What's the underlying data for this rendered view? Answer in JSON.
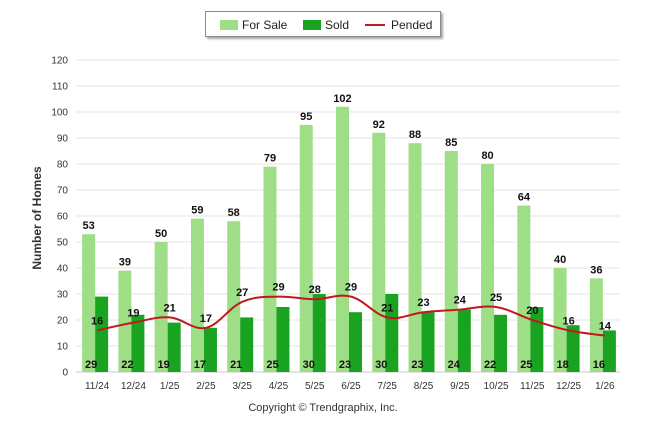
{
  "footer": {
    "copyright": "Copyright © Trendgraphix, Inc."
  },
  "chart_data": {
    "type": "bar",
    "ylabel": "Number of Homes",
    "xlabel": "",
    "ylim": [
      0,
      120
    ],
    "yticks": [
      0,
      10,
      20,
      30,
      40,
      50,
      60,
      70,
      80,
      90,
      100,
      110,
      120
    ],
    "grid": true,
    "legend_position": "top-center",
    "categories": [
      "11/24",
      "12/24",
      "1/25",
      "2/25",
      "3/25",
      "4/25",
      "5/25",
      "6/25",
      "7/25",
      "8/25",
      "9/25",
      "10/25",
      "11/25",
      "12/25",
      "1/26"
    ],
    "series": [
      {
        "name": "For Sale",
        "type": "bar",
        "color": "#9ede86",
        "values": [
          53,
          39,
          50,
          59,
          58,
          79,
          95,
          102,
          92,
          88,
          85,
          80,
          64,
          40,
          36
        ]
      },
      {
        "name": "Sold",
        "type": "bar",
        "color": "#1aa320",
        "values": [
          29,
          22,
          19,
          17,
          21,
          25,
          30,
          23,
          30,
          23,
          24,
          22,
          25,
          18,
          16
        ]
      },
      {
        "name": "Pended",
        "type": "line",
        "color": "#c0191f",
        "values": [
          16,
          19,
          21,
          17,
          27,
          29,
          28,
          29,
          21,
          23,
          24,
          25,
          20,
          16,
          14
        ]
      }
    ]
  },
  "colors": {
    "grid": "#e4e4e4",
    "axis": "#c8c8c8",
    "text": "#222222"
  }
}
